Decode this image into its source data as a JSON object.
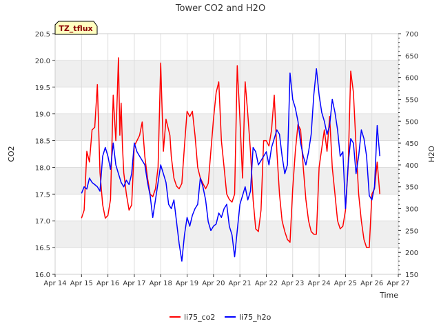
{
  "chart_data": {
    "type": "line",
    "title": "Tower CO2 and H2O",
    "xlabel": "Time",
    "ylabel_left": "CO2",
    "ylabel_right": "H2O",
    "badge": "TZ_tflux",
    "x_ticks": [
      "Apr 14",
      "Apr 15",
      "Apr 16",
      "Apr 17",
      "Apr 18",
      "Apr 19",
      "Apr 20",
      "Apr 21",
      "Apr 22",
      "Apr 23",
      "Apr 24",
      "Apr 25",
      "Apr 26",
      "Apr 27"
    ],
    "xlim": [
      14,
      27
    ],
    "ylim_left": [
      16.0,
      20.5
    ],
    "ylim_right": [
      150,
      700
    ],
    "y_ticks_left": [
      "16.0",
      "16.5",
      "17.0",
      "17.5",
      "18.0",
      "18.5",
      "19.0",
      "19.5",
      "20.0",
      "20.5"
    ],
    "y_ticks_right": [
      "150",
      "200",
      "250",
      "300",
      "350",
      "400",
      "450",
      "500",
      "550",
      "600",
      "650",
      "700"
    ],
    "grid": true,
    "legend_position": "bottom",
    "colors": {
      "li75_co2": "#ff0000",
      "li75_h2o": "#0000ff",
      "band": "#efefef"
    },
    "series": [
      {
        "name": "li75_co2",
        "axis": "left",
        "x": [
          15.0,
          15.1,
          15.2,
          15.3,
          15.4,
          15.5,
          15.6,
          15.7,
          15.8,
          15.9,
          16.0,
          16.1,
          16.2,
          16.3,
          16.4,
          16.45,
          16.5,
          16.55,
          16.6,
          16.7,
          16.8,
          16.9,
          17.0,
          17.1,
          17.2,
          17.3,
          17.4,
          17.5,
          17.6,
          17.7,
          17.8,
          17.9,
          18.0,
          18.1,
          18.2,
          18.3,
          18.35,
          18.4,
          18.5,
          18.6,
          18.7,
          18.8,
          18.9,
          19.0,
          19.1,
          19.2,
          19.3,
          19.4,
          19.5,
          19.6,
          19.7,
          19.8,
          19.9,
          20.0,
          20.1,
          20.2,
          20.3,
          20.4,
          20.5,
          20.6,
          20.7,
          20.8,
          20.9,
          21.0,
          21.1,
          21.2,
          21.3,
          21.4,
          21.5,
          21.6,
          21.7,
          21.8,
          21.9,
          22.0,
          22.1,
          22.2,
          22.3,
          22.4,
          22.5,
          22.6,
          22.7,
          22.8,
          22.9,
          23.0,
          23.1,
          23.2,
          23.3,
          23.4,
          23.5,
          23.6,
          23.7,
          23.8,
          23.9,
          24.0,
          24.1,
          24.2,
          24.3,
          24.4,
          24.5,
          24.6,
          24.7,
          24.8,
          24.9,
          25.0,
          25.1,
          25.2,
          25.3,
          25.4,
          25.5,
          25.6,
          25.7,
          25.8,
          25.9,
          26.0,
          26.1,
          26.2,
          26.3
        ],
        "values": [
          17.05,
          17.2,
          18.3,
          18.1,
          18.7,
          18.75,
          19.55,
          17.9,
          17.3,
          17.05,
          17.1,
          17.4,
          19.35,
          18.5,
          20.05,
          18.6,
          19.2,
          18.4,
          17.9,
          17.5,
          17.2,
          17.3,
          18.4,
          18.5,
          18.6,
          18.85,
          18.2,
          17.8,
          17.5,
          17.45,
          17.6,
          18.0,
          19.95,
          18.3,
          18.9,
          18.7,
          18.6,
          18.2,
          17.8,
          17.65,
          17.6,
          17.7,
          18.4,
          19.05,
          18.95,
          19.05,
          18.6,
          18.0,
          17.8,
          17.7,
          17.6,
          17.7,
          18.3,
          18.9,
          19.4,
          19.6,
          18.5,
          18.0,
          17.5,
          17.4,
          17.35,
          17.5,
          19.9,
          18.9,
          17.8,
          19.6,
          19.0,
          18.3,
          17.4,
          16.85,
          16.8,
          17.2,
          18.5,
          18.5,
          18.4,
          18.7,
          19.35,
          18.3,
          17.5,
          17.0,
          16.8,
          16.65,
          16.6,
          17.6,
          18.3,
          18.8,
          18.7,
          18.0,
          17.4,
          17.0,
          16.8,
          16.75,
          16.75,
          18.0,
          18.35,
          18.7,
          18.3,
          18.95,
          18.0,
          17.5,
          17.0,
          16.85,
          16.9,
          17.2,
          18.0,
          19.8,
          19.4,
          18.4,
          17.5,
          17.0,
          16.65,
          16.5,
          16.5,
          17.5,
          17.6,
          18.1,
          17.5
        ]
      },
      {
        "name": "li75_h2o",
        "axis": "right",
        "x": [
          15.0,
          15.1,
          15.2,
          15.3,
          15.4,
          15.5,
          15.6,
          15.7,
          15.8,
          15.9,
          16.0,
          16.1,
          16.2,
          16.3,
          16.4,
          16.5,
          16.6,
          16.7,
          16.8,
          16.9,
          17.0,
          17.1,
          17.2,
          17.3,
          17.4,
          17.5,
          17.6,
          17.7,
          17.8,
          17.9,
          18.0,
          18.1,
          18.2,
          18.3,
          18.4,
          18.5,
          18.6,
          18.7,
          18.8,
          18.9,
          19.0,
          19.1,
          19.2,
          19.3,
          19.4,
          19.5,
          19.6,
          19.7,
          19.8,
          19.9,
          20.0,
          20.1,
          20.2,
          20.3,
          20.4,
          20.5,
          20.6,
          20.7,
          20.8,
          20.9,
          21.0,
          21.1,
          21.2,
          21.3,
          21.4,
          21.5,
          21.6,
          21.7,
          21.8,
          21.9,
          22.0,
          22.1,
          22.2,
          22.3,
          22.4,
          22.5,
          22.6,
          22.7,
          22.8,
          22.9,
          23.0,
          23.1,
          23.2,
          23.3,
          23.4,
          23.5,
          23.6,
          23.7,
          23.8,
          23.9,
          24.0,
          24.1,
          24.2,
          24.3,
          24.4,
          24.5,
          24.6,
          24.7,
          24.8,
          24.9,
          25.0,
          25.1,
          25.2,
          25.3,
          25.4,
          25.5,
          25.6,
          25.7,
          25.8,
          25.9,
          26.0,
          26.1,
          26.2,
          26.3
        ],
        "values": [
          335,
          350,
          345,
          370,
          360,
          355,
          350,
          340,
          420,
          440,
          420,
          390,
          450,
          400,
          380,
          360,
          350,
          365,
          355,
          380,
          450,
          430,
          420,
          410,
          400,
          360,
          330,
          280,
          320,
          360,
          400,
          380,
          360,
          310,
          300,
          320,
          270,
          220,
          180,
          240,
          280,
          260,
          285,
          300,
          310,
          370,
          350,
          320,
          270,
          250,
          260,
          265,
          290,
          280,
          300,
          310,
          260,
          240,
          190,
          250,
          310,
          330,
          350,
          320,
          340,
          440,
          430,
          400,
          410,
          420,
          430,
          400,
          440,
          460,
          480,
          470,
          420,
          380,
          400,
          610,
          550,
          530,
          500,
          450,
          420,
          400,
          430,
          470,
          560,
          620,
          560,
          520,
          500,
          470,
          490,
          550,
          520,
          480,
          420,
          430,
          300,
          400,
          460,
          450,
          380,
          420,
          480,
          460,
          420,
          330,
          320,
          350,
          490,
          420
        ]
      }
    ]
  }
}
